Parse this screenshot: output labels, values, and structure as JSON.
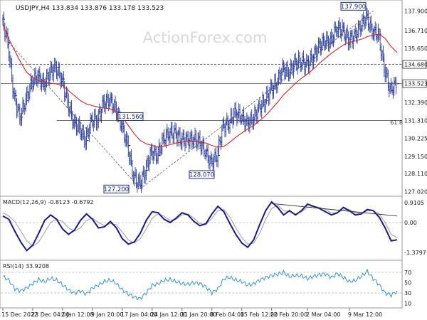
{
  "chart_data": {
    "type": "line",
    "instrument_header": "USDJPY,H4  133.834 133.876 133.178 133.523",
    "watermark": "ActionForex.com",
    "price_panel": {
      "ylim": [
        127.0,
        138.3
      ],
      "y_ticks": [
        "137.900",
        "136.710",
        "135.650",
        "134.680",
        "133.523",
        "132.390",
        "131.310",
        "130.225",
        "129.150",
        "128.110",
        "127.020"
      ],
      "price_labels": [
        {
          "text": "137.900",
          "value": 137.9
        },
        {
          "text": "131.560",
          "value": 131.56
        },
        {
          "text": "128.070",
          "value": 128.07
        },
        {
          "text": "127.200",
          "value": 127.2
        }
      ],
      "right_flags": [
        {
          "text": "134.680",
          "value": 134.68
        },
        {
          "text": "133.523",
          "value": 133.523
        }
      ],
      "fib_label": "61.8",
      "fib_level": 131.3,
      "series": [
        {
          "name": "USDJPY",
          "style": "ohlc bars",
          "color": "#2a3d9c",
          "values": [
            137.4,
            136.0,
            132.8,
            131.5,
            132.5,
            133.6,
            134.0,
            133.4,
            134.2,
            134.5,
            133.8,
            132.4,
            131.2,
            130.8,
            130.1,
            131.3,
            131.4,
            132.3,
            132.6,
            132.0,
            131.1,
            129.8,
            128.0,
            127.4,
            128.3,
            129.4,
            129.2,
            130.1,
            130.6,
            130.5,
            130.2,
            130.1,
            130.2,
            130.0,
            129.5,
            128.7,
            129.2,
            130.9,
            131.2,
            131.7,
            131.6,
            131.1,
            131.4,
            132.0,
            132.5,
            133.1,
            133.6,
            134.4,
            134.2,
            134.7,
            134.9,
            134.6,
            135.1,
            135.7,
            136.1,
            136.0,
            136.9,
            136.7,
            136.2,
            136.3,
            137.0,
            137.5,
            136.7,
            136.5,
            134.5,
            133.1,
            133.52
          ]
        },
        {
          "name": "Moving Average",
          "style": "line",
          "color": "#e0201e",
          "values": [
            137.1,
            136.2,
            135.5,
            134.8,
            134.2,
            133.9,
            133.7,
            133.6,
            133.55,
            133.5,
            133.4,
            133.1,
            132.8,
            132.5,
            132.3,
            132.2,
            132.1,
            132.05,
            132.0,
            131.85,
            131.5,
            131.0,
            130.5,
            130.1,
            129.9,
            129.8,
            129.7,
            129.75,
            129.85,
            129.95,
            130.0,
            130.05,
            130.05,
            130.0,
            129.95,
            129.8,
            129.7,
            129.75,
            130.0,
            130.3,
            130.55,
            130.8,
            131.0,
            131.3,
            131.6,
            132.0,
            132.4,
            132.85,
            133.2,
            133.55,
            133.85,
            134.1,
            134.4,
            134.75,
            135.05,
            135.35,
            135.6,
            135.85,
            136.0,
            136.1,
            136.2,
            136.35,
            136.45,
            136.5,
            136.25,
            135.75,
            135.4
          ]
        }
      ],
      "trend_lines": [
        {
          "from_index": 1,
          "from_value": 136.0,
          "to_index": 23,
          "to_value": 127.2
        },
        {
          "from_index": 23,
          "from_value": 127.2,
          "to_index": 62,
          "to_value": 137.9
        }
      ],
      "levels": [
        {
          "value": 134.68,
          "style": "dashed"
        },
        {
          "value": 133.523,
          "style": "solid"
        },
        {
          "value": 131.3,
          "from_index": 9,
          "style": "solid"
        }
      ]
    },
    "macd_panel": {
      "title": "MACD(12,26,9) -0.8123 -0.6792",
      "y_ticks": [
        "0.9105",
        "0.00",
        "-1.3797"
      ],
      "ylim": [
        -1.55,
        1.05
      ],
      "series": [
        {
          "name": "MACD",
          "color": "#1a1a8c",
          "values": [
            0.3,
            0.15,
            -0.4,
            -0.9,
            -1.3,
            -1.05,
            -0.5,
            0.1,
            0.35,
            0.15,
            -0.3,
            -0.55,
            -0.35,
            0.1,
            0.4,
            0.15,
            -0.25,
            -0.2,
            0.05,
            -0.25,
            -0.75,
            -1.0,
            -0.9,
            -0.5,
            0.1,
            0.5,
            0.45,
            0.15,
            0.0,
            0.2,
            0.45,
            0.35,
            0.05,
            -0.15,
            -0.05,
            0.4,
            0.75,
            0.5,
            -0.05,
            -0.55,
            -0.95,
            -1.15,
            -0.8,
            -0.1,
            0.55,
            0.95,
            0.7,
            0.35,
            0.55,
            0.35,
            0.55,
            0.85,
            0.75,
            0.65,
            0.5,
            0.35,
            0.45,
            0.7,
            0.55,
            0.35,
            0.4,
            0.6,
            0.55,
            0.25,
            -0.25,
            -0.85,
            -0.8
          ]
        },
        {
          "name": "Signal",
          "color": "#9a9ab8",
          "values": [
            0.45,
            0.3,
            0.05,
            -0.4,
            -0.85,
            -1.1,
            -0.9,
            -0.45,
            0.0,
            0.15,
            0.05,
            -0.25,
            -0.4,
            -0.25,
            0.1,
            0.2,
            0.0,
            -0.15,
            -0.05,
            -0.1,
            -0.45,
            -0.8,
            -0.95,
            -0.75,
            -0.3,
            0.2,
            0.4,
            0.3,
            0.1,
            0.15,
            0.35,
            0.4,
            0.2,
            -0.05,
            -0.1,
            0.2,
            0.55,
            0.6,
            0.25,
            -0.25,
            -0.7,
            -1.0,
            -0.95,
            -0.5,
            0.15,
            0.65,
            0.8,
            0.55,
            0.5,
            0.4,
            0.5,
            0.7,
            0.75,
            0.7,
            0.6,
            0.45,
            0.45,
            0.6,
            0.6,
            0.45,
            0.4,
            0.55,
            0.55,
            0.4,
            0.0,
            -0.55,
            -0.7
          ]
        }
      ],
      "trend_line": {
        "from_index": 45,
        "from_value": 0.88,
        "to_index": 66,
        "to_value": 0.3
      }
    },
    "rsi_panel": {
      "title": "RSI(14) 33.9208",
      "y_ticks": [
        "70",
        "50",
        "30",
        "10"
      ],
      "ylim": [
        5,
        88
      ],
      "levels": [
        70,
        30
      ],
      "series": [
        {
          "name": "RSI",
          "color": "#2f94e0",
          "values": [
            62,
            55,
            38,
            34,
            40,
            48,
            56,
            52,
            58,
            55,
            46,
            36,
            30,
            34,
            28,
            40,
            45,
            52,
            55,
            48,
            36,
            28,
            22,
            19,
            30,
            45,
            48,
            54,
            56,
            52,
            48,
            47,
            50,
            48,
            42,
            30,
            38,
            58,
            60,
            55,
            52,
            45,
            48,
            55,
            60,
            64,
            66,
            70,
            62,
            64,
            63,
            58,
            62,
            66,
            67,
            60,
            68,
            60,
            52,
            54,
            62,
            72,
            58,
            46,
            30,
            26,
            34
          ]
        }
      ]
    },
    "x_ticks": [
      {
        "label": "15 Dec 2022",
        "index": 0
      },
      {
        "label": "23 Dec 04:00",
        "index": 5
      },
      {
        "label": "2 Jan 12:00",
        "index": 10
      },
      {
        "label": "9 Jan 20:00",
        "index": 15
      },
      {
        "label": "17 Jan 04:00",
        "index": 20
      },
      {
        "label": "24 Jan 12:00",
        "index": 25
      },
      {
        "label": "31 Jan 20:00",
        "index": 30
      },
      {
        "label": "8 Feb 04:00",
        "index": 35
      },
      {
        "label": "15 Feb 12:00",
        "index": 40
      },
      {
        "label": "22 Feb 20:00",
        "index": 45
      },
      {
        "label": "2 Mar 04:00",
        "index": 51
      },
      {
        "label": "9 Mar 12:00",
        "index": 58
      }
    ]
  }
}
